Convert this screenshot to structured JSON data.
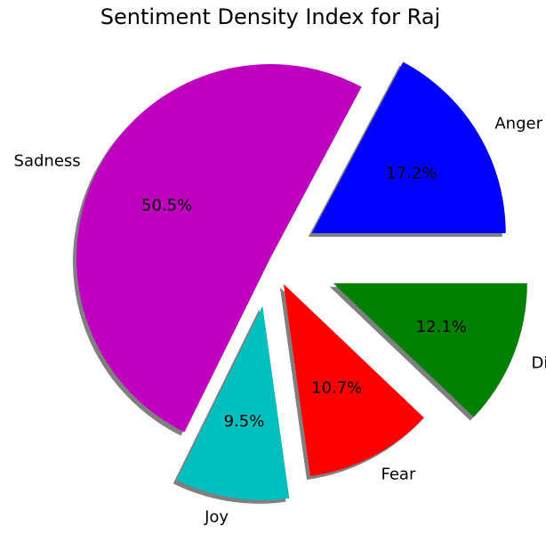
{
  "chart_data": {
    "type": "pie",
    "title": "Sentiment Density Index for Raj",
    "shadow": true,
    "exploded": true,
    "slices": [
      {
        "label": "Anger",
        "value": 17.2,
        "pct_label": "17.2%",
        "color": "#0000ff"
      },
      {
        "label": "Sadness",
        "value": 50.5,
        "pct_label": "50.5%",
        "color": "#bf00bf"
      },
      {
        "label": "Joy",
        "value": 9.5,
        "pct_label": "9.5%",
        "color": "#00bfbf"
      },
      {
        "label": "Fear",
        "value": 10.7,
        "pct_label": "10.7%",
        "color": "#ff0000"
      },
      {
        "label": "Disgust",
        "value": 12.1,
        "pct_label": "12.1%",
        "color": "#008000"
      }
    ]
  }
}
